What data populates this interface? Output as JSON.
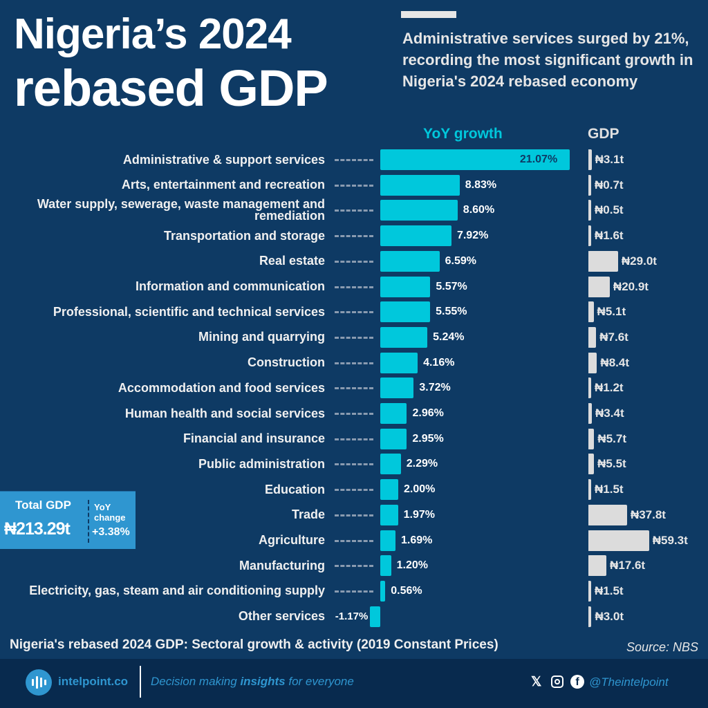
{
  "header": {
    "title_line1": "Nigeria’s 2024",
    "title_line2": "rebased GDP",
    "subtitle": "Administrative services surged by 21%, recording the most significant growth in Nigeria's 2024 rebased economy"
  },
  "chart_data": {
    "type": "bar",
    "orientation": "horizontal",
    "series_headers": [
      "YoY growth",
      "GDP"
    ],
    "categories": [
      "Administrative & support services",
      "Arts, entertainment and recreation",
      "Water supply, sewerage, waste management and remediation",
      "Transportation and storage",
      "Real estate",
      "Information and communication",
      "Professional, scientific and technical services",
      "Mining and quarrying",
      "Construction",
      "Accommodation and food services",
      "Human health and social services",
      "Financial and insurance",
      "Public administration",
      "Education",
      "Trade",
      "Agriculture",
      "Manufacturing",
      "Electricity, gas, steam and air conditioning supply",
      "Other services"
    ],
    "series": [
      {
        "name": "YoY growth",
        "unit": "%",
        "color": "#00c8dc",
        "values": [
          21.07,
          8.83,
          8.6,
          7.92,
          6.59,
          5.57,
          5.55,
          5.24,
          4.16,
          3.72,
          2.96,
          2.95,
          2.29,
          2.0,
          1.97,
          1.69,
          1.2,
          0.56,
          -1.17
        ],
        "labels": [
          "21.07%",
          "8.83%",
          "8.60%",
          "7.92%",
          "6.59%",
          "5.57%",
          "5.55%",
          "5.24%",
          "4.16%",
          "3.72%",
          "2.96%",
          "2.95%",
          "2.29%",
          "2.00%",
          "1.97%",
          "1.69%",
          "1.20%",
          "0.56%",
          "-1.17%"
        ]
      },
      {
        "name": "GDP",
        "unit": "₦ trillion",
        "color": "#dcdcdc",
        "values": [
          3.1,
          0.7,
          0.5,
          1.6,
          29.0,
          20.9,
          5.1,
          7.6,
          8.4,
          1.2,
          3.4,
          5.7,
          5.5,
          1.5,
          37.8,
          59.3,
          17.6,
          1.5,
          3.0
        ],
        "labels": [
          "₦3.1t",
          "₦0.7t",
          "₦0.5t",
          "₦1.6t",
          "₦29.0t",
          "₦20.9t",
          "₦5.1t",
          "₦7.6t",
          "₦8.4t",
          "₦1.2t",
          "₦3.4t",
          "₦5.7t",
          "₦5.5t",
          "₦1.5t",
          "₦37.8t",
          "₦59.3t",
          "₦17.6t",
          "₦1.5t",
          "₦3.0t"
        ]
      }
    ],
    "title": "Nigeria's rebased 2024 GDP: Sectoral growth & activity (2019 Constant Prices)",
    "xlabel": "",
    "ylabel": ""
  },
  "total": {
    "label": "Total GDP",
    "value": "₦213.29t",
    "change_label": "YoY change",
    "change_value": "+3.38%"
  },
  "caption": "Nigeria's rebased 2024 GDP: Sectoral growth & activity (2019 Constant Prices)",
  "source": "Source: NBS",
  "footer": {
    "brand": "intelpoint.co",
    "tagline_pre": "Decision making ",
    "tagline_bold": "insights",
    "tagline_post": " for everyone",
    "handle": "@Theintelpoint",
    "icons": [
      "x-icon",
      "instagram-icon",
      "facebook-icon"
    ]
  }
}
